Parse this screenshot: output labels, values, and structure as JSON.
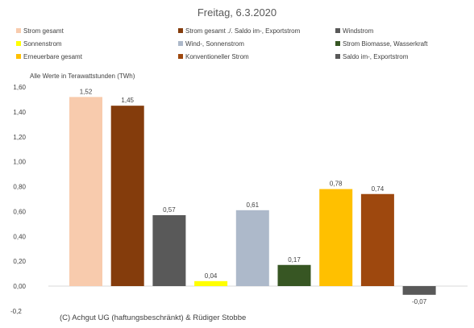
{
  "chart_data": {
    "type": "bar",
    "title": "Freitag, 6.3.2020",
    "unit_note": "Alle Werte in Terawattstunden (TWh)",
    "credit": "(C) Achgut UG (haftungsbeschränkt) & Rüdiger Stobbe",
    "ylim": [
      -0.2,
      1.6
    ],
    "y_ticks": [
      "-0,2",
      "0,00",
      "0,20",
      "0,40",
      "0,60",
      "0,80",
      "1,00",
      "1,20",
      "1,40",
      "1,60"
    ],
    "y_tick_values": [
      -0.2,
      0,
      0.2,
      0.4,
      0.6,
      0.8,
      1.0,
      1.2,
      1.4,
      1.6
    ],
    "grid": false,
    "legend_position": "top",
    "series": [
      {
        "name": "Strom gesamt",
        "value": 1.52,
        "label": "1,52",
        "color": "#F8CBAD"
      },
      {
        "name": "Strom gesamt ./. Saldo im-, Exportstrom",
        "value": 1.45,
        "label": "1,45",
        "color": "#843C0C"
      },
      {
        "name": "Windstrom",
        "value": 0.57,
        "label": "0,57",
        "color": "#595959"
      },
      {
        "name": "Sonnenstrom",
        "value": 0.04,
        "label": "0,04",
        "color": "#FFFF00"
      },
      {
        "name": "Wind-, Sonnenstrom",
        "value": 0.61,
        "label": "0,61",
        "color": "#ADB9CA"
      },
      {
        "name": "Strom Biomasse, Wasserkraft",
        "value": 0.17,
        "label": "0,17",
        "color": "#375623"
      },
      {
        "name": "Erneuerbare gesamt",
        "value": 0.78,
        "label": "0,78",
        "color": "#FFC000"
      },
      {
        "name": "Konventioneller Strom",
        "value": 0.74,
        "label": "0,74",
        "color": "#9E480E"
      },
      {
        "name": "Saldo im-, Exportstrom",
        "value": -0.07,
        "label": "-0,07",
        "color": "#595959"
      }
    ]
  }
}
